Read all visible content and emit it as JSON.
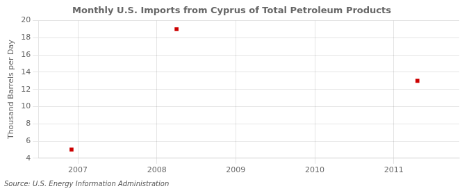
{
  "chart_data": {
    "type": "scatter",
    "title": "Monthly U.S. Imports from Cyprus of Total Petroleum Products",
    "ylabel": "Thousand Barrels per Day",
    "source": "Source: U.S. Energy Information Administration",
    "x": [
      2006.92,
      2008.25,
      2011.3
    ],
    "values": [
      5.0,
      19.0,
      13.0
    ],
    "color": "#cc0000",
    "marker": "square",
    "xlim": [
      2006.5,
      2011.83
    ],
    "ylim": [
      4,
      20
    ],
    "xticks": [
      2007,
      2008,
      2009,
      2010,
      2011
    ],
    "yticks": [
      4,
      6,
      8,
      10,
      12,
      14,
      16,
      18,
      20
    ],
    "grid": true
  }
}
